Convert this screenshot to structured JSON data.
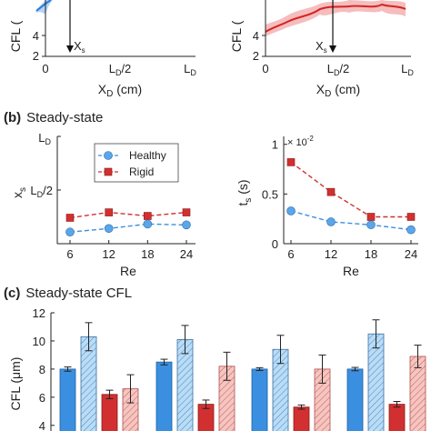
{
  "panel_a": {
    "left": {
      "ylabel": "CFL (",
      "xlabel": "X",
      "xlabel_sub": "D",
      "xlabel_unit": " (cm)",
      "yticks": [
        "4",
        "2"
      ],
      "xticks": [
        "0",
        "L",
        "L"
      ],
      "xtick_sub": "D",
      "xtick_mid_suffix": "/2",
      "marker_label": "X",
      "marker_sub": "s",
      "colors": {
        "curve": "#2b7bd6",
        "band": "#9cc9f5"
      }
    },
    "right": {
      "ylabel": "CFL (",
      "xlabel": "X",
      "xlabel_sub": "D",
      "xlabel_unit": " (cm)",
      "yticks": [
        "4",
        "2"
      ],
      "xticks": [
        "0",
        "L",
        "L"
      ],
      "xtick_sub": "D",
      "xtick_mid_suffix": "/2",
      "marker_label": "X",
      "marker_sub": "s",
      "colors": {
        "curve": "#d42424",
        "band": "#f2a7a7"
      }
    }
  },
  "panel_b": {
    "tag": "(b)",
    "title": "Steady-state",
    "left_ylabel": "x",
    "left_ylabel_sub": "s",
    "left_yticks": [
      "L",
      "L"
    ],
    "left_ytick_sub": "D",
    "left_ytick_suffix": "/2",
    "right_ylabel": "t",
    "right_ylabel_sub": "s",
    "right_ylabel_unit": " (s)",
    "right_yticks": [
      "1",
      "0.5",
      "0"
    ],
    "right_scale_base": "× 10",
    "right_scale_exp": "-2",
    "xlabel": "Re",
    "xticks": [
      "6",
      "12",
      "18",
      "24"
    ],
    "legend": [
      "Healthy",
      "Rigid"
    ]
  },
  "panel_c": {
    "tag": "(c)",
    "title": "Steady-state CFL",
    "ylabel": "CFL (μm)",
    "yticks": [
      "12",
      "10",
      "8",
      "6",
      "4"
    ]
  },
  "colors": {
    "healthy": "#3b8fe0",
    "healthy_light": "#b9dcf7",
    "rigid": "#d23030",
    "rigid_light": "#f6c5c0",
    "axis": "#222222"
  },
  "chart_data": [
    {
      "type": "line",
      "panel": "(b) left",
      "x": [
        6,
        12,
        18,
        24
      ],
      "xlabel": "Re",
      "ylabel": "x_s",
      "ylim_fraction_of_LD": [
        0.4,
        1.0
      ],
      "series": [
        {
          "name": "Healthy",
          "values": [
            0.465,
            0.485,
            0.51,
            0.505
          ]
        },
        {
          "name": "Rigid",
          "values": [
            0.545,
            0.575,
            0.555,
            0.575
          ]
        }
      ]
    },
    {
      "type": "line",
      "panel": "(b) right",
      "x": [
        6,
        12,
        18,
        24
      ],
      "xlabel": "Re",
      "ylabel": "t_s (s)",
      "scale": "1e-2",
      "ylim": [
        0,
        1.08
      ],
      "series": [
        {
          "name": "Healthy",
          "values": [
            0.33,
            0.22,
            0.19,
            0.14
          ]
        },
        {
          "name": "Rigid",
          "values": [
            0.82,
            0.52,
            0.27,
            0.27
          ]
        }
      ]
    },
    {
      "type": "bar",
      "panel": "(c)",
      "ylabel": "CFL (μm)",
      "ylim": [
        3.6,
        12
      ],
      "groups": 4,
      "series": [
        {
          "values": [
            8.0,
            8.5,
            8.0,
            8.0
          ],
          "errors": [
            0.15,
            0.2,
            0.1,
            0.12
          ],
          "hatched": false,
          "color": "healthy"
        },
        {
          "values": [
            10.3,
            10.1,
            9.4,
            10.5
          ],
          "errors": [
            1.0,
            1.0,
            1.0,
            1.0
          ],
          "hatched": true,
          "color": "healthy_light"
        },
        {
          "values": [
            6.2,
            5.5,
            5.3,
            5.5
          ],
          "errors": [
            0.3,
            0.3,
            0.15,
            0.2
          ],
          "hatched": false,
          "color": "rigid"
        },
        {
          "values": [
            6.6,
            8.2,
            8.0,
            8.9
          ],
          "errors": [
            1.0,
            1.0,
            1.0,
            0.8
          ],
          "hatched": true,
          "color": "rigid_light"
        }
      ]
    }
  ]
}
